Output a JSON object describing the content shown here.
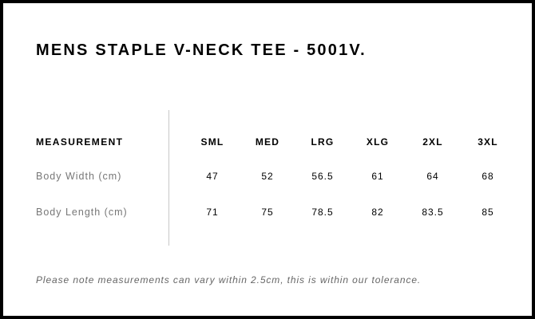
{
  "title": "MENS STAPLE V-NECK TEE - 5001V.",
  "table": {
    "header": [
      "MEASUREMENT",
      "SML",
      "MED",
      "LRG",
      "XLG",
      "2XL",
      "3XL"
    ],
    "rows": [
      [
        "Body Width (cm)",
        "47",
        "52",
        "56.5",
        "61",
        "64",
        "68"
      ],
      [
        "Body Length (cm)",
        "71",
        "75",
        "78.5",
        "82",
        "83.5",
        "85"
      ]
    ]
  },
  "note": "Please note measurements can vary within 2.5cm, this is within our tolerance."
}
